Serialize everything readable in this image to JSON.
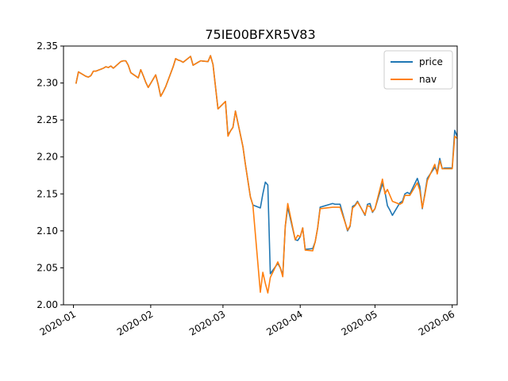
{
  "chart_data": {
    "type": "line",
    "title": "75IE00BFXR5V83",
    "xlabel": "",
    "ylabel": "",
    "xlim": [
      "2019-12-28",
      "2020-06-03"
    ],
    "ylim": [
      2.0,
      2.35
    ],
    "xticks": [
      {
        "date": "2020-01-01",
        "label": "2020-01"
      },
      {
        "date": "2020-02-01",
        "label": "2020-02"
      },
      {
        "date": "2020-03-01",
        "label": "2020-03"
      },
      {
        "date": "2020-04-01",
        "label": "2020-04"
      },
      {
        "date": "2020-05-01",
        "label": "2020-05"
      },
      {
        "date": "2020-06-01",
        "label": "2020-06"
      }
    ],
    "yticks": [
      {
        "value": 2.0,
        "label": "2.00"
      },
      {
        "value": 2.05,
        "label": "2.05"
      },
      {
        "value": 2.1,
        "label": "2.10"
      },
      {
        "value": 2.15,
        "label": "2.15"
      },
      {
        "value": 2.2,
        "label": "2.20"
      },
      {
        "value": 2.25,
        "label": "2.25"
      },
      {
        "value": 2.3,
        "label": "2.30"
      },
      {
        "value": 2.35,
        "label": "2.35"
      }
    ],
    "grid": false,
    "legend": "top-right",
    "series": [
      {
        "name": "price",
        "color": "#1f77b4",
        "points": [
          [
            "2020-01-02",
            2.299
          ],
          [
            "2020-01-03",
            2.315
          ],
          [
            "2020-01-06",
            2.309
          ],
          [
            "2020-01-07",
            2.308
          ],
          [
            "2020-01-08",
            2.31
          ],
          [
            "2020-01-09",
            2.316
          ],
          [
            "2020-01-10",
            2.316
          ],
          [
            "2020-01-13",
            2.32
          ],
          [
            "2020-01-14",
            2.322
          ],
          [
            "2020-01-15",
            2.321
          ],
          [
            "2020-01-16",
            2.323
          ],
          [
            "2020-01-17",
            2.32
          ],
          [
            "2020-01-20",
            2.329
          ],
          [
            "2020-01-21",
            2.33
          ],
          [
            "2020-01-22",
            2.33
          ],
          [
            "2020-01-23",
            2.324
          ],
          [
            "2020-01-24",
            2.314
          ],
          [
            "2020-01-27",
            2.307
          ],
          [
            "2020-01-28",
            2.318
          ],
          [
            "2020-01-29",
            2.31
          ],
          [
            "2020-01-30",
            2.301
          ],
          [
            "2020-01-31",
            2.294
          ],
          [
            "2020-02-03",
            2.311
          ],
          [
            "2020-02-04",
            2.298
          ],
          [
            "2020-02-05",
            2.282
          ],
          [
            "2020-02-06",
            2.288
          ],
          [
            "2020-02-07",
            2.295
          ],
          [
            "2020-02-10",
            2.322
          ],
          [
            "2020-02-11",
            2.333
          ],
          [
            "2020-02-12",
            2.331
          ],
          [
            "2020-02-13",
            2.33
          ],
          [
            "2020-02-14",
            2.328
          ],
          [
            "2020-02-17",
            2.336
          ],
          [
            "2020-02-18",
            2.324
          ],
          [
            "2020-02-19",
            2.326
          ],
          [
            "2020-02-20",
            2.328
          ],
          [
            "2020-02-21",
            2.33
          ],
          [
            "2020-02-24",
            2.329
          ],
          [
            "2020-02-25",
            2.337
          ],
          [
            "2020-02-26",
            2.325
          ],
          [
            "2020-02-27",
            2.295
          ],
          [
            "2020-02-28",
            2.265
          ],
          [
            "2020-03-02",
            2.275
          ],
          [
            "2020-03-03",
            2.23
          ],
          [
            "2020-03-04",
            2.235
          ],
          [
            "2020-03-05",
            2.24
          ],
          [
            "2020-03-06",
            2.262
          ],
          [
            "2020-03-09",
            2.214
          ],
          [
            "2020-03-10",
            2.19
          ],
          [
            "2020-03-11",
            2.168
          ],
          [
            "2020-03-12",
            2.146
          ],
          [
            "2020-03-13",
            2.135
          ],
          [
            "2020-03-16",
            2.131
          ],
          [
            "2020-03-17",
            2.15
          ],
          [
            "2020-03-18",
            2.166
          ],
          [
            "2020-03-19",
            2.162
          ],
          [
            "2020-03-20",
            2.042
          ],
          [
            "2020-03-23",
            2.056
          ],
          [
            "2020-03-24",
            2.05
          ],
          [
            "2020-03-25",
            2.04
          ],
          [
            "2020-03-26",
            2.106
          ],
          [
            "2020-03-27",
            2.132
          ],
          [
            "2020-03-30",
            2.088
          ],
          [
            "2020-03-31",
            2.087
          ],
          [
            "2020-04-01",
            2.092
          ],
          [
            "2020-04-02",
            2.104
          ],
          [
            "2020-04-03",
            2.075
          ],
          [
            "2020-04-06",
            2.076
          ],
          [
            "2020-04-07",
            2.085
          ],
          [
            "2020-04-08",
            2.104
          ],
          [
            "2020-04-09",
            2.132
          ],
          [
            "2020-04-14",
            2.137
          ],
          [
            "2020-04-15",
            2.136
          ],
          [
            "2020-04-16",
            2.136
          ],
          [
            "2020-04-17",
            2.136
          ],
          [
            "2020-04-20",
            2.1
          ],
          [
            "2020-04-21",
            2.106
          ],
          [
            "2020-04-22",
            2.133
          ],
          [
            "2020-04-23",
            2.135
          ],
          [
            "2020-04-24",
            2.14
          ],
          [
            "2020-04-27",
            2.121
          ],
          [
            "2020-04-28",
            2.136
          ],
          [
            "2020-04-29",
            2.137
          ],
          [
            "2020-04-30",
            2.125
          ],
          [
            "2020-05-01",
            2.13
          ],
          [
            "2020-05-04",
            2.164
          ],
          [
            "2020-05-05",
            2.153
          ],
          [
            "2020-05-06",
            2.134
          ],
          [
            "2020-05-07",
            2.128
          ],
          [
            "2020-05-08",
            2.121
          ],
          [
            "2020-05-11",
            2.138
          ],
          [
            "2020-05-12",
            2.14
          ],
          [
            "2020-05-13",
            2.15
          ],
          [
            "2020-05-14",
            2.152
          ],
          [
            "2020-05-15",
            2.15
          ],
          [
            "2020-05-18",
            2.171
          ],
          [
            "2020-05-19",
            2.16
          ],
          [
            "2020-05-20",
            2.13
          ],
          [
            "2020-05-21",
            2.15
          ],
          [
            "2020-05-22",
            2.171
          ],
          [
            "2020-05-25",
            2.186
          ],
          [
            "2020-05-26",
            2.18
          ],
          [
            "2020-05-27",
            2.198
          ],
          [
            "2020-05-28",
            2.184
          ],
          [
            "2020-05-29",
            2.185
          ],
          [
            "2020-06-01",
            2.185
          ],
          [
            "2020-06-02",
            2.236
          ],
          [
            "2020-06-03",
            2.228
          ],
          [
            "2020-06-04",
            2.229
          ],
          [
            "2020-06-05",
            2.232
          ]
        ]
      },
      {
        "name": "nav",
        "color": "#ff7f0e",
        "points": [
          [
            "2020-01-02",
            2.299
          ],
          [
            "2020-01-03",
            2.315
          ],
          [
            "2020-01-06",
            2.309
          ],
          [
            "2020-01-07",
            2.308
          ],
          [
            "2020-01-08",
            2.31
          ],
          [
            "2020-01-09",
            2.316
          ],
          [
            "2020-01-10",
            2.316
          ],
          [
            "2020-01-13",
            2.32
          ],
          [
            "2020-01-14",
            2.322
          ],
          [
            "2020-01-15",
            2.321
          ],
          [
            "2020-01-16",
            2.323
          ],
          [
            "2020-01-17",
            2.32
          ],
          [
            "2020-01-20",
            2.329
          ],
          [
            "2020-01-21",
            2.33
          ],
          [
            "2020-01-22",
            2.33
          ],
          [
            "2020-01-23",
            2.324
          ],
          [
            "2020-01-24",
            2.314
          ],
          [
            "2020-01-27",
            2.307
          ],
          [
            "2020-01-28",
            2.318
          ],
          [
            "2020-01-29",
            2.31
          ],
          [
            "2020-01-30",
            2.301
          ],
          [
            "2020-01-31",
            2.294
          ],
          [
            "2020-02-03",
            2.311
          ],
          [
            "2020-02-04",
            2.298
          ],
          [
            "2020-02-05",
            2.282
          ],
          [
            "2020-02-06",
            2.288
          ],
          [
            "2020-02-07",
            2.295
          ],
          [
            "2020-02-10",
            2.322
          ],
          [
            "2020-02-11",
            2.333
          ],
          [
            "2020-02-12",
            2.331
          ],
          [
            "2020-02-13",
            2.33
          ],
          [
            "2020-02-14",
            2.328
          ],
          [
            "2020-02-17",
            2.336
          ],
          [
            "2020-02-18",
            2.324
          ],
          [
            "2020-02-19",
            2.326
          ],
          [
            "2020-02-20",
            2.328
          ],
          [
            "2020-02-21",
            2.33
          ],
          [
            "2020-02-24",
            2.329
          ],
          [
            "2020-02-25",
            2.337
          ],
          [
            "2020-02-26",
            2.325
          ],
          [
            "2020-02-27",
            2.295
          ],
          [
            "2020-02-28",
            2.265
          ],
          [
            "2020-03-02",
            2.275
          ],
          [
            "2020-03-03",
            2.228
          ],
          [
            "2020-03-04",
            2.235
          ],
          [
            "2020-03-05",
            2.24
          ],
          [
            "2020-03-06",
            2.262
          ],
          [
            "2020-03-09",
            2.214
          ],
          [
            "2020-03-10",
            2.19
          ],
          [
            "2020-03-11",
            2.168
          ],
          [
            "2020-03-12",
            2.146
          ],
          [
            "2020-03-13",
            2.135
          ],
          [
            "2020-03-16",
            2.017
          ],
          [
            "2020-03-17",
            2.044
          ],
          [
            "2020-03-18",
            2.029
          ],
          [
            "2020-03-19",
            2.016
          ],
          [
            "2020-03-20",
            2.037
          ],
          [
            "2020-03-23",
            2.058
          ],
          [
            "2020-03-24",
            2.05
          ],
          [
            "2020-03-25",
            2.038
          ],
          [
            "2020-03-26",
            2.106
          ],
          [
            "2020-03-27",
            2.137
          ],
          [
            "2020-03-30",
            2.088
          ],
          [
            "2020-03-31",
            2.094
          ],
          [
            "2020-04-01",
            2.092
          ],
          [
            "2020-04-02",
            2.104
          ],
          [
            "2020-04-03",
            2.074
          ],
          [
            "2020-04-06",
            2.073
          ],
          [
            "2020-04-07",
            2.085
          ],
          [
            "2020-04-08",
            2.104
          ],
          [
            "2020-04-09",
            2.13
          ],
          [
            "2020-04-14",
            2.132
          ],
          [
            "2020-04-15",
            2.132
          ],
          [
            "2020-04-16",
            2.132
          ],
          [
            "2020-04-17",
            2.132
          ],
          [
            "2020-04-20",
            2.101
          ],
          [
            "2020-04-21",
            2.107
          ],
          [
            "2020-04-22",
            2.131
          ],
          [
            "2020-04-23",
            2.134
          ],
          [
            "2020-04-24",
            2.139
          ],
          [
            "2020-04-27",
            2.122
          ],
          [
            "2020-04-28",
            2.134
          ],
          [
            "2020-04-29",
            2.133
          ],
          [
            "2020-04-30",
            2.126
          ],
          [
            "2020-05-01",
            2.13
          ],
          [
            "2020-05-04",
            2.17
          ],
          [
            "2020-05-05",
            2.15
          ],
          [
            "2020-05-06",
            2.156
          ],
          [
            "2020-05-07",
            2.148
          ],
          [
            "2020-05-08",
            2.14
          ],
          [
            "2020-05-11",
            2.136
          ],
          [
            "2020-05-12",
            2.138
          ],
          [
            "2020-05-13",
            2.148
          ],
          [
            "2020-05-14",
            2.148
          ],
          [
            "2020-05-15",
            2.148
          ],
          [
            "2020-05-18",
            2.165
          ],
          [
            "2020-05-19",
            2.155
          ],
          [
            "2020-05-20",
            2.131
          ],
          [
            "2020-05-21",
            2.148
          ],
          [
            "2020-05-22",
            2.168
          ],
          [
            "2020-05-25",
            2.19
          ],
          [
            "2020-05-26",
            2.177
          ],
          [
            "2020-05-27",
            2.195
          ],
          [
            "2020-05-28",
            2.184
          ],
          [
            "2020-05-29",
            2.184
          ],
          [
            "2020-06-01",
            2.184
          ],
          [
            "2020-06-02",
            2.228
          ],
          [
            "2020-06-03",
            2.225
          ],
          [
            "2020-06-04",
            2.224
          ],
          [
            "2020-06-05",
            2.223
          ]
        ]
      }
    ]
  }
}
